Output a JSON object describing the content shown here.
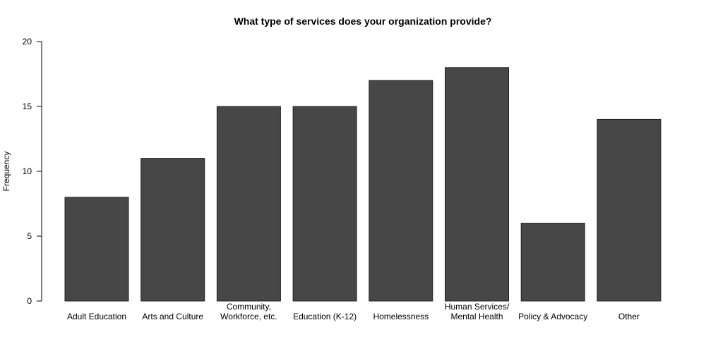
{
  "chart_data": {
    "type": "bar",
    "title": "What type of services does your organization provide?",
    "xlabel": "",
    "ylabel": "Frequency",
    "categories": [
      [
        "Adult Education"
      ],
      [
        "Arts and Culture"
      ],
      [
        "Community,",
        "Workforce, etc."
      ],
      [
        "Education (K-12)"
      ],
      [
        "Homelessness"
      ],
      [
        "Human Services/",
        "Mental Health"
      ],
      [
        "Policy & Advocacy"
      ],
      [
        "Other"
      ]
    ],
    "values": [
      8,
      11,
      15,
      15,
      17,
      18,
      6,
      14
    ],
    "ylim": [
      0,
      20
    ],
    "yticks": [
      0,
      5,
      10,
      15,
      20
    ],
    "grid": false,
    "colors": {
      "bar": "#474747"
    }
  }
}
